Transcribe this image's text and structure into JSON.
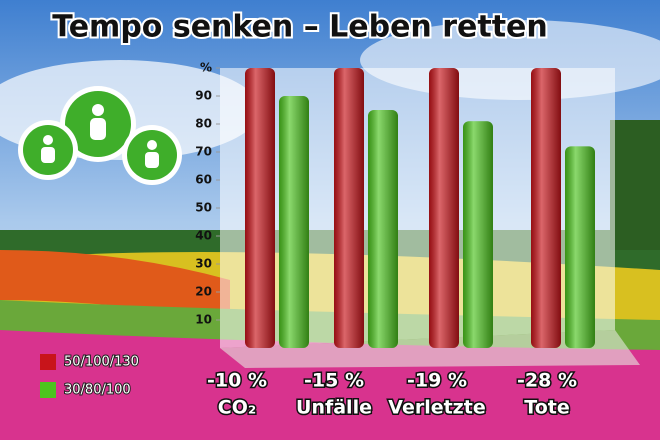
{
  "chart_data": {
    "type": "bar",
    "title": "Tempo senken – Leben retten",
    "categories": [
      "CO₂",
      "Unfälle",
      "Verletzte",
      "Tote"
    ],
    "changes": [
      "-10 %",
      "-15 %",
      "-19 %",
      "-28 %"
    ],
    "series": [
      {
        "name": "50/100/130",
        "color": "#c8141a",
        "values": [
          100,
          100,
          100,
          100
        ]
      },
      {
        "name": "30/80/100",
        "color": "#4cc41e",
        "values": [
          90,
          85,
          81,
          72
        ]
      }
    ],
    "ylim": [
      0,
      100
    ],
    "yticks": [
      10,
      20,
      30,
      40,
      50,
      60,
      70,
      80,
      90,
      {
        "value": 100,
        "label": "%"
      }
    ],
    "legend": "bottom-left"
  }
}
